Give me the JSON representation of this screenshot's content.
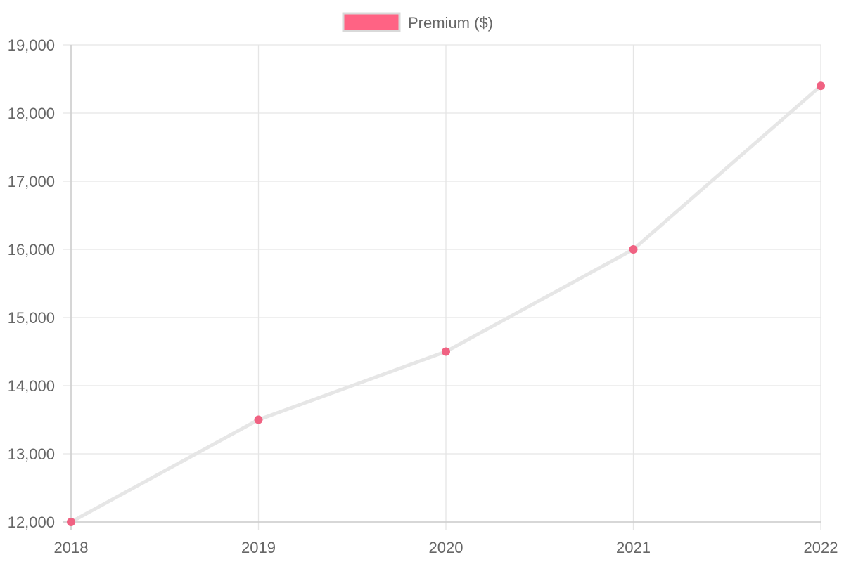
{
  "chart_data": {
    "type": "line",
    "title": "",
    "xlabel": "",
    "ylabel": "",
    "categories": [
      "2018",
      "2019",
      "2020",
      "2021",
      "2022"
    ],
    "series": [
      {
        "name": "Premium ($)",
        "values": [
          12000,
          13500,
          14500,
          16000,
          18400
        ],
        "line_color": "#e6e6e6",
        "point_color": "#f06282",
        "legend_color": "#ff6384"
      }
    ],
    "ylim": [
      12000,
      19000
    ],
    "yticks": [
      12000,
      13000,
      14000,
      15000,
      16000,
      17000,
      18000,
      19000
    ],
    "ytick_labels": [
      "12,000",
      "13,000",
      "14,000",
      "15,000",
      "16,000",
      "17,000",
      "18,000",
      "19,000"
    ],
    "grid": true,
    "legend_position": "top-center"
  }
}
